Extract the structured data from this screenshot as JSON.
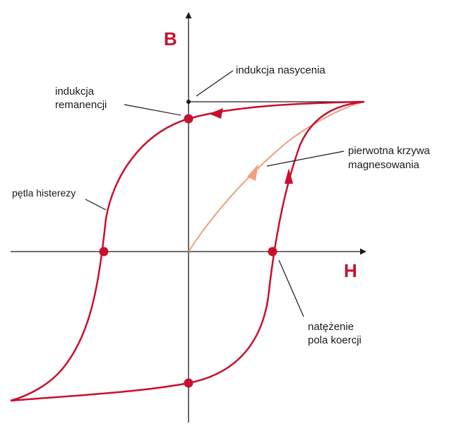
{
  "colors": {
    "loop": "#c8102e",
    "initial_curve": "#f0a07a",
    "axes": "#1a1a1a",
    "axis_letters": "#c8102e",
    "leader_lines": "#1a1a1a"
  },
  "axes": {
    "y_label": "B",
    "x_label": "H"
  },
  "labels": {
    "saturation": "indukcja nasycenia",
    "remanence_line1": "indukcja",
    "remanence_line2": "remanencji",
    "hysteresis_loop": "pętla histerezy",
    "initial_curve_line1": "pierwotna krzywa",
    "initial_curve_line2": "magnesowania",
    "coercivity_line1": "natężenie",
    "coercivity_line2": "pola koercji"
  }
}
